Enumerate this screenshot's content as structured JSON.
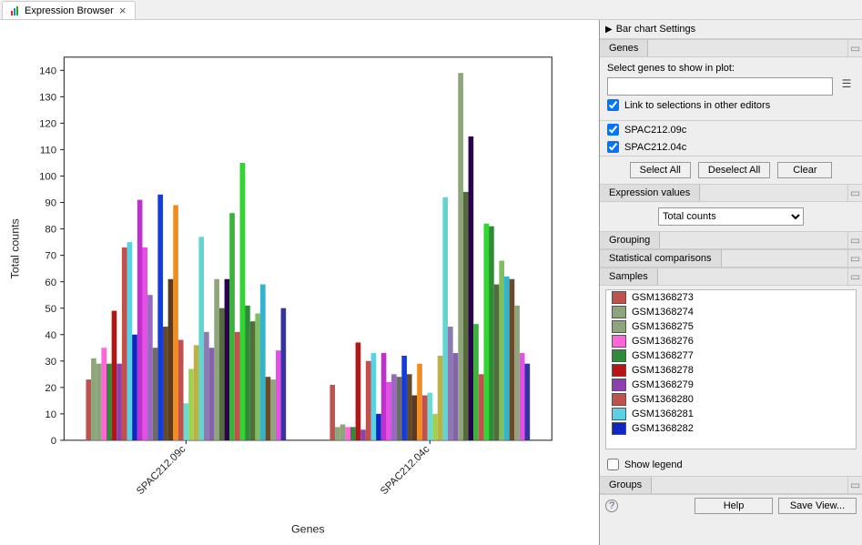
{
  "tab": {
    "title": "Expression Browser"
  },
  "chart": {
    "type": "bar-grouped",
    "xlabel": "Genes",
    "ylabel": "Total counts",
    "ylim": [
      0,
      145
    ],
    "yticks": [
      0,
      10,
      20,
      30,
      40,
      50,
      60,
      70,
      80,
      90,
      100,
      110,
      120,
      130,
      140
    ],
    "plot_border": "#222222",
    "background": "#ffffff",
    "axis_color": "#222222",
    "tick_fontsize": 11,
    "label_fontsize": 12,
    "categories": [
      "SPAC212.09c",
      "SPAC212.04c"
    ],
    "bar_gap_within_group": 0,
    "group_gap_ratio": 0.18,
    "series": [
      {
        "id": "GSM1368273",
        "color": "#c0524d",
        "values": [
          23,
          21
        ]
      },
      {
        "id": "GSM1368274",
        "color": "#8ea47b",
        "values": [
          31,
          5
        ]
      },
      {
        "id": "GSM1368275",
        "color": "#8ea47b",
        "values": [
          29,
          6
        ]
      },
      {
        "id": "GSM1368276",
        "color": "#ff66d9",
        "values": [
          35,
          5
        ]
      },
      {
        "id": "GSM1368277",
        "color": "#2f8a3a",
        "values": [
          29,
          5
        ]
      },
      {
        "id": "GSM1368278",
        "color": "#b81414",
        "values": [
          49,
          37
        ]
      },
      {
        "id": "GSM1368279",
        "color": "#8f3fb0",
        "values": [
          29,
          4
        ]
      },
      {
        "id": "GSM1368280",
        "color": "#c0524d",
        "values": [
          73,
          30
        ]
      },
      {
        "id": "GSM1368281",
        "color": "#5cd1e6",
        "values": [
          75,
          33
        ]
      },
      {
        "id": "GSM1368282",
        "color": "#1026c4",
        "values": [
          40,
          10
        ]
      },
      {
        "id": "s11",
        "color": "#c22ecf",
        "values": [
          91,
          33
        ]
      },
      {
        "id": "s12",
        "color": "#e64fe6",
        "values": [
          73,
          22
        ]
      },
      {
        "id": "s13",
        "color": "#9a68c2",
        "values": [
          55,
          25
        ]
      },
      {
        "id": "s14",
        "color": "#6b6b6b",
        "values": [
          35,
          24
        ]
      },
      {
        "id": "s15",
        "color": "#143bdc",
        "values": [
          93,
          32
        ]
      },
      {
        "id": "s16",
        "color": "#614b2b",
        "values": [
          43,
          25
        ]
      },
      {
        "id": "s17",
        "color": "#5b3a20",
        "values": [
          61,
          17
        ]
      },
      {
        "id": "s18",
        "color": "#f28c1e",
        "values": [
          89,
          29
        ]
      },
      {
        "id": "s19",
        "color": "#c0524d",
        "values": [
          38,
          17
        ]
      },
      {
        "id": "s20",
        "color": "#6fd9d0",
        "values": [
          14,
          18
        ]
      },
      {
        "id": "s21",
        "color": "#9fd14f",
        "values": [
          27,
          10
        ]
      },
      {
        "id": "s22",
        "color": "#c2b03c",
        "values": [
          36,
          32
        ]
      },
      {
        "id": "s23",
        "color": "#5fd6cf",
        "values": [
          77,
          92
        ]
      },
      {
        "id": "s24",
        "color": "#8c7ab0",
        "values": [
          41,
          43
        ]
      },
      {
        "id": "s25",
        "color": "#8563a8",
        "values": [
          35,
          33
        ]
      },
      {
        "id": "s26",
        "color": "#8ea47b",
        "values": [
          61,
          139
        ]
      },
      {
        "id": "s27",
        "color": "#556b3a",
        "values": [
          50,
          94
        ]
      },
      {
        "id": "s28",
        "color": "#2b004f",
        "values": [
          61,
          115
        ]
      },
      {
        "id": "s29",
        "color": "#3ab33a",
        "values": [
          86,
          44
        ]
      },
      {
        "id": "s30",
        "color": "#c0524d",
        "values": [
          41,
          25
        ]
      },
      {
        "id": "s31",
        "color": "#35d435",
        "values": [
          105,
          82
        ]
      },
      {
        "id": "s32",
        "color": "#2f8a3a",
        "values": [
          51,
          81
        ]
      },
      {
        "id": "s33",
        "color": "#556b3a",
        "values": [
          45,
          59
        ]
      },
      {
        "id": "s34",
        "color": "#7fbf5f",
        "values": [
          48,
          68
        ]
      },
      {
        "id": "s35",
        "color": "#33b3cc",
        "values": [
          59,
          62
        ]
      },
      {
        "id": "s36",
        "color": "#6b4a2a",
        "values": [
          24,
          61
        ]
      },
      {
        "id": "s37",
        "color": "#8ea47b",
        "values": [
          23,
          51
        ]
      },
      {
        "id": "s38",
        "color": "#e64fe6",
        "values": [
          34,
          33
        ]
      },
      {
        "id": "s39",
        "color": "#3333a8",
        "values": [
          50,
          29
        ]
      }
    ]
  },
  "side": {
    "header": "Bar chart Settings",
    "genes_section": "Genes",
    "select_genes_label": "Select genes to show in plot:",
    "search_value": "",
    "link_label": "Link to selections in other editors",
    "link_checked": true,
    "genes": [
      {
        "id": "SPAC212.09c",
        "checked": true
      },
      {
        "id": "SPAC212.04c",
        "checked": true
      }
    ],
    "select_all": "Select All",
    "deselect_all": "Deselect All",
    "clear": "Clear",
    "expr_section": "Expression values",
    "expr_dropdown": "Total counts",
    "grouping_section": "Grouping",
    "stats_section": "Statistical comparisons",
    "samples_section": "Samples",
    "samples": [
      {
        "id": "GSM1368273",
        "color": "#c0524d"
      },
      {
        "id": "GSM1368274",
        "color": "#8ea47b"
      },
      {
        "id": "GSM1368275",
        "color": "#8ea47b"
      },
      {
        "id": "GSM1368276",
        "color": "#ff66d9"
      },
      {
        "id": "GSM1368277",
        "color": "#2f8a3a"
      },
      {
        "id": "GSM1368278",
        "color": "#b81414"
      },
      {
        "id": "GSM1368279",
        "color": "#8f3fb0"
      },
      {
        "id": "GSM1368280",
        "color": "#c0524d"
      },
      {
        "id": "GSM1368281",
        "color": "#5cd1e6"
      },
      {
        "id": "GSM1368282",
        "color": "#1026c4"
      }
    ],
    "show_legend_label": "Show legend",
    "show_legend_checked": false,
    "groups_section": "Groups"
  },
  "bottom": {
    "help": "Help",
    "save_view": "Save View..."
  }
}
